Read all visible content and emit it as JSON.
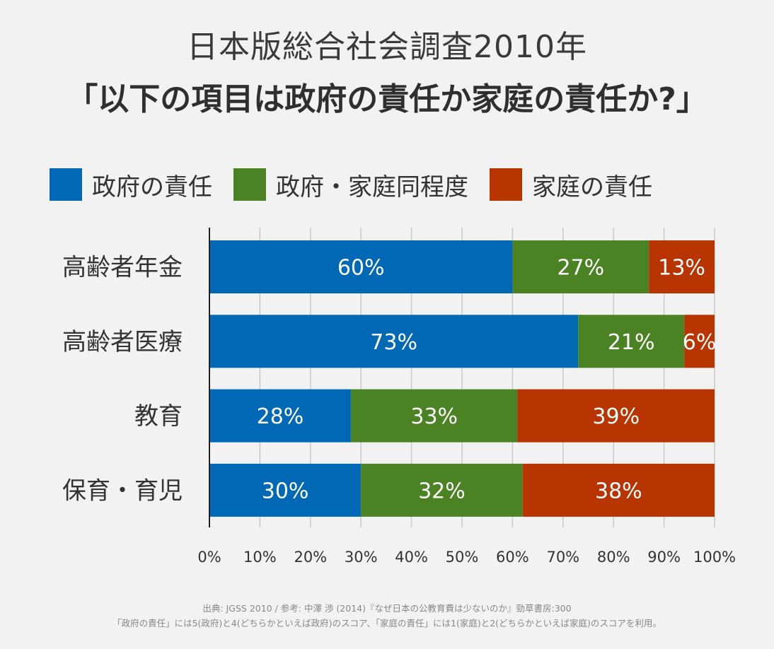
{
  "title_line1": "日本版総合社会調査2010年",
  "title_line2": "「以下の項目は政府の責任か家庭の責任か?」",
  "legend": [
    {
      "label": "政府の責任",
      "color": "#0068b4"
    },
    {
      "label": "政府・家庭同程度",
      "color": "#4a8224"
    },
    {
      "label": "家庭の責任",
      "color": "#b83400"
    }
  ],
  "chart_data": {
    "type": "bar",
    "orientation": "horizontal",
    "stacked": true,
    "categories": [
      "高齢者年金",
      "高齢者医療",
      "教育",
      "保育・育児"
    ],
    "series": [
      {
        "name": "政府の責任",
        "color": "#0068b4",
        "values": [
          60,
          73,
          28,
          30
        ],
        "labels": [
          "60%",
          "73%",
          "28%",
          "30%"
        ]
      },
      {
        "name": "政府・家庭同程度",
        "color": "#4a8224",
        "values": [
          27,
          21,
          33,
          32
        ],
        "labels": [
          "27%",
          "21%",
          "33%",
          "32%"
        ]
      },
      {
        "name": "家庭の責任",
        "color": "#b83400",
        "values": [
          13,
          6,
          39,
          38
        ],
        "labels": [
          "13%",
          "6%",
          "39%",
          "38%"
        ]
      }
    ],
    "xlim": [
      0,
      100
    ],
    "xticks": [
      0,
      10,
      20,
      30,
      40,
      50,
      60,
      70,
      80,
      90,
      100
    ],
    "xtick_labels": [
      "0%",
      "10%",
      "20%",
      "30%",
      "40%",
      "50%",
      "60%",
      "70%",
      "80%",
      "90%",
      "100%"
    ],
    "grid": true,
    "legend_position": "top"
  },
  "source": {
    "line1": "出典: JGSS 2010 / 参考: 中澤 渉 (2014)『なぜ日本の公教育費は少ないのか』勁草書房:300",
    "line2": "「政府の責任」には5(政府)と4(どちらかといえば政府)のスコア、「家庭の責任」には1(家庭)と2(どちらかといえば家庭)のスコアを利用。"
  }
}
